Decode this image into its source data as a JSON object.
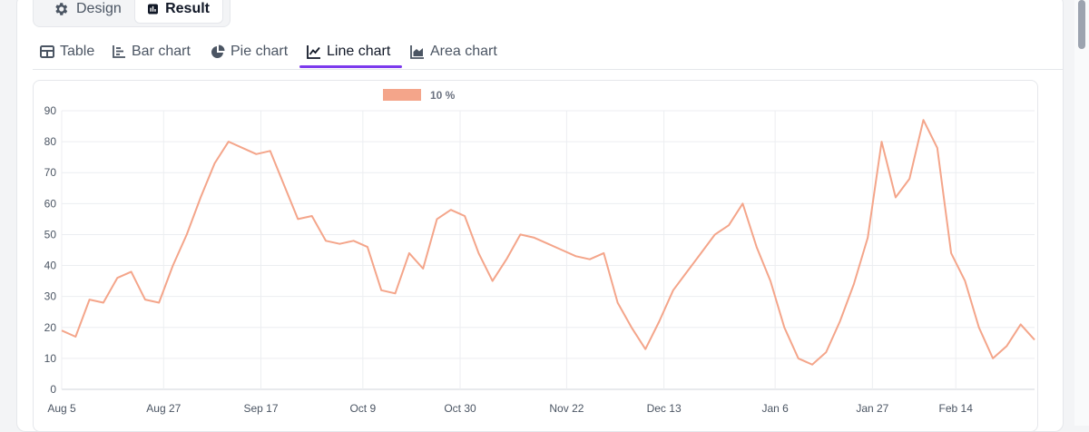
{
  "mode_toggle": {
    "design_label": "Design",
    "design_icon": "gear-icon",
    "result_label": "Result",
    "result_icon": "bar-chart-square-icon"
  },
  "tabs": [
    {
      "label": "Table",
      "icon": "table-icon",
      "active": false
    },
    {
      "label": "Bar chart",
      "icon": "bar-chart-icon",
      "active": false
    },
    {
      "label": "Pie chart",
      "icon": "pie-chart-icon",
      "active": false
    },
    {
      "label": "Line chart",
      "icon": "line-chart-icon",
      "active": true
    },
    {
      "label": "Area chart",
      "icon": "area-chart-icon",
      "active": false
    }
  ],
  "colors": {
    "accent": "#7c3aed",
    "series_10": "#f4a58a",
    "series_20": "#90caf0",
    "series_50": "#e6ea98",
    "series_200": "#a9b4bc"
  },
  "chart_data": {
    "type": "line",
    "title": "",
    "xlabel": "",
    "ylabel": "",
    "ylim": [
      0,
      90
    ],
    "yticks": [
      0,
      10,
      20,
      30,
      40,
      50,
      60,
      70,
      80,
      90
    ],
    "xlim": [
      "2023-08-05",
      "2024-03-02"
    ],
    "xticks": [
      "Aug 5",
      "Aug 27",
      "Sep 17",
      "Oct 9",
      "Oct 30",
      "Nov 22",
      "Dec 13",
      "Jan 6",
      "Jan 27",
      "Feb 14"
    ],
    "xtick_dates": [
      "2023-08-05",
      "2023-08-27",
      "2023-09-17",
      "2023-10-09",
      "2023-10-30",
      "2023-11-22",
      "2023-12-13",
      "2024-01-06",
      "2024-01-27",
      "2024-02-14"
    ],
    "grid": true,
    "legend_position": "top-center",
    "series": [
      {
        "name": "10 %",
        "color": "#f4a58a",
        "points": [
          [
            "2023-08-05",
            19
          ],
          [
            "2023-08-08",
            17
          ],
          [
            "2023-08-11",
            29
          ],
          [
            "2023-08-14",
            28
          ],
          [
            "2023-08-17",
            36
          ],
          [
            "2023-08-20",
            38
          ],
          [
            "2023-08-23",
            29
          ],
          [
            "2023-08-26",
            28
          ],
          [
            "2023-08-29",
            40
          ],
          [
            "2023-09-01",
            50
          ],
          [
            "2023-09-04",
            62
          ],
          [
            "2023-09-07",
            73
          ],
          [
            "2023-09-10",
            80
          ],
          [
            "2023-09-13",
            78
          ],
          [
            "2023-09-16",
            76
          ],
          [
            "2023-09-19",
            77
          ],
          [
            "2023-09-22",
            66
          ],
          [
            "2023-09-25",
            55
          ],
          [
            "2023-09-28",
            56
          ],
          [
            "2023-10-01",
            48
          ],
          [
            "2023-10-04",
            47
          ],
          [
            "2023-10-07",
            48
          ],
          [
            "2023-10-10",
            46
          ],
          [
            "2023-10-13",
            32
          ],
          [
            "2023-10-16",
            31
          ],
          [
            "2023-10-19",
            44
          ],
          [
            "2023-10-22",
            39
          ],
          [
            "2023-10-25",
            55
          ],
          [
            "2023-10-28",
            58
          ],
          [
            "2023-10-31",
            56
          ],
          [
            "2023-11-03",
            44
          ],
          [
            "2023-11-06",
            35
          ],
          [
            "2023-11-09",
            42
          ],
          [
            "2023-11-12",
            50
          ],
          [
            "2023-11-15",
            49
          ],
          [
            "2023-11-18",
            47
          ],
          [
            "2023-11-21",
            45
          ],
          [
            "2023-11-24",
            43
          ],
          [
            "2023-11-27",
            42
          ],
          [
            "2023-11-30",
            44
          ],
          [
            "2023-12-03",
            28
          ],
          [
            "2023-12-06",
            20
          ],
          [
            "2023-12-09",
            13
          ],
          [
            "2023-12-12",
            22
          ],
          [
            "2023-12-15",
            32
          ],
          [
            "2023-12-18",
            38
          ],
          [
            "2023-12-21",
            44
          ],
          [
            "2023-12-24",
            50
          ],
          [
            "2023-12-27",
            53
          ],
          [
            "2023-12-30",
            60
          ],
          [
            "2024-01-02",
            46
          ],
          [
            "2024-01-05",
            35
          ],
          [
            "2024-01-08",
            20
          ],
          [
            "2024-01-11",
            10
          ],
          [
            "2024-01-14",
            8
          ],
          [
            "2024-01-17",
            12
          ],
          [
            "2024-01-20",
            22
          ],
          [
            "2024-01-23",
            34
          ],
          [
            "2024-01-26",
            49
          ],
          [
            "2024-01-29",
            80
          ],
          [
            "2024-02-01",
            62
          ],
          [
            "2024-02-04",
            68
          ],
          [
            "2024-02-07",
            87
          ],
          [
            "2024-02-10",
            78
          ],
          [
            "2024-02-13",
            44
          ],
          [
            "2024-02-16",
            35
          ],
          [
            "2024-02-19",
            20
          ],
          [
            "2024-02-22",
            10
          ],
          [
            "2024-02-25",
            14
          ],
          [
            "2024-02-28",
            21
          ],
          [
            "2024-03-02",
            16
          ]
        ]
      }
    ]
  }
}
